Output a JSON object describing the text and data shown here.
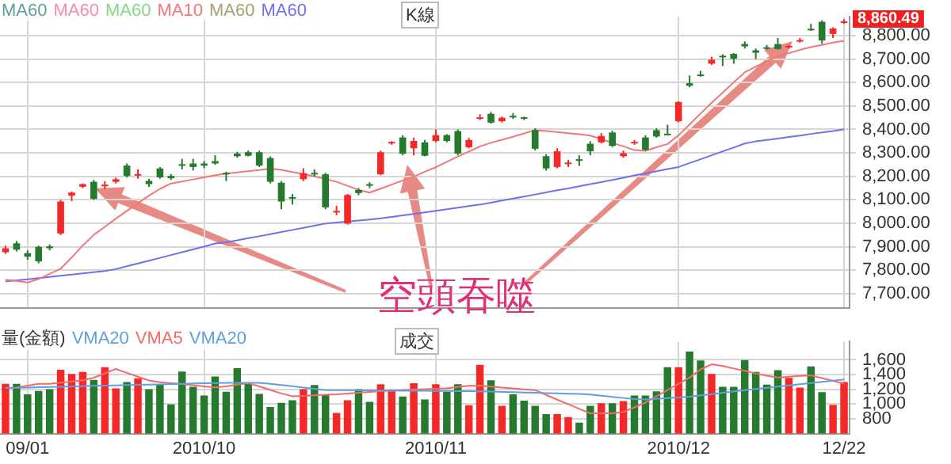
{
  "chart_data": [
    {
      "type": "candlestick",
      "categories": [
        null,
        null,
        "09/01",
        null,
        null,
        null,
        null,
        null,
        null,
        null,
        null,
        null,
        null,
        null,
        null,
        null,
        null,
        null,
        "2010/10",
        null,
        null,
        null,
        null,
        null,
        null,
        null,
        null,
        null,
        null,
        null,
        null,
        null,
        null,
        null,
        null,
        null,
        null,
        null,
        null,
        "2010/11",
        null,
        null,
        null,
        null,
        null,
        null,
        null,
        null,
        null,
        null,
        null,
        null,
        null,
        null,
        null,
        null,
        null,
        null,
        null,
        null,
        null,
        "2010/12",
        null,
        null,
        null,
        null,
        null,
        null,
        null,
        null,
        null,
        null,
        null,
        null,
        null,
        null,
        "12/22"
      ],
      "ohlc": [
        [
          7877,
          7905,
          7870,
          7894
        ],
        [
          7915,
          7925,
          7880,
          7888
        ],
        [
          7873,
          7885,
          7845,
          7858
        ],
        [
          7900,
          7905,
          7830,
          7838
        ],
        [
          7902,
          7910,
          7885,
          7894
        ],
        [
          7957,
          8100,
          7950,
          8093
        ],
        [
          8118,
          8135,
          8095,
          8131
        ],
        [
          8156,
          8170,
          8150,
          8167
        ],
        [
          8177,
          8185,
          8100,
          8104
        ],
        [
          8160,
          8180,
          8145,
          8165
        ],
        [
          8177,
          8195,
          8170,
          8188
        ],
        [
          8246,
          8255,
          8195,
          8202
        ],
        [
          8205,
          8230,
          8190,
          8210
        ],
        [
          8181,
          8190,
          8155,
          8167
        ],
        [
          8234,
          8240,
          8190,
          8196
        ],
        [
          8202,
          8210,
          8185,
          8192
        ],
        [
          8252,
          8275,
          8230,
          8248
        ],
        [
          8255,
          8275,
          8225,
          8240
        ],
        [
          8255,
          8265,
          8235,
          8246
        ],
        [
          8265,
          8290,
          8250,
          8255
        ],
        [
          8215,
          8220,
          8180,
          8209
        ],
        [
          8297,
          8305,
          8280,
          8286
        ],
        [
          8303,
          8310,
          8285,
          8288
        ],
        [
          8303,
          8310,
          8240,
          8246
        ],
        [
          8278,
          8285,
          8170,
          8177
        ],
        [
          8173,
          8180,
          8060,
          8093
        ],
        [
          8112,
          8125,
          8080,
          8108
        ],
        [
          8188,
          8235,
          8180,
          8213
        ],
        [
          8215,
          8230,
          8200,
          8211
        ],
        [
          8209,
          8215,
          8060,
          8068
        ],
        [
          8049,
          8075,
          8035,
          8053
        ],
        [
          7999,
          8125,
          7995,
          8121
        ],
        [
          8142,
          8150,
          8120,
          8129
        ],
        [
          8167,
          8175,
          8150,
          8163
        ],
        [
          8209,
          8310,
          8205,
          8303
        ],
        [
          8343,
          8350,
          8335,
          8347
        ],
        [
          8366,
          8375,
          8290,
          8297
        ],
        [
          8320,
          8365,
          8290,
          8351
        ],
        [
          8345,
          8355,
          8285,
          8288
        ],
        [
          8351,
          8400,
          8345,
          8376
        ],
        [
          8376,
          8380,
          8345,
          8351
        ],
        [
          8393,
          8400,
          8290,
          8297
        ],
        [
          8324,
          8365,
          8320,
          8355
        ],
        [
          8448,
          8465,
          8440,
          8452
        ],
        [
          8467,
          8475,
          8425,
          8429
        ],
        [
          8435,
          8455,
          8430,
          8450
        ],
        [
          8458,
          8470,
          8445,
          8454
        ],
        [
          8452,
          8455,
          8440,
          8448
        ],
        [
          8397,
          8405,
          8310,
          8318
        ],
        [
          8286,
          8295,
          8225,
          8234
        ],
        [
          8240,
          8320,
          8235,
          8307
        ],
        [
          8255,
          8270,
          8240,
          8259
        ],
        [
          8273,
          8290,
          8245,
          8269
        ],
        [
          8339,
          8350,
          8290,
          8307
        ],
        [
          8345,
          8385,
          8340,
          8372
        ],
        [
          8387,
          8395,
          8325,
          8330
        ],
        [
          8286,
          8310,
          8280,
          8299
        ],
        [
          8343,
          8355,
          8335,
          8347
        ],
        [
          8366,
          8375,
          8310,
          8313
        ],
        [
          8397,
          8405,
          8365,
          8370
        ],
        [
          8382,
          8420,
          8375,
          8378
        ],
        [
          8435,
          8520,
          8430,
          8517
        ],
        [
          8597,
          8630,
          8580,
          8586
        ],
        [
          8634,
          8650,
          8625,
          8630
        ],
        [
          8680,
          8710,
          8675,
          8697
        ],
        [
          8714,
          8720,
          8670,
          8710
        ],
        [
          8722,
          8725,
          8680,
          8701
        ],
        [
          8764,
          8775,
          8745,
          8754
        ],
        [
          8737,
          8745,
          8700,
          8727
        ],
        [
          8750,
          8760,
          8740,
          8746
        ],
        [
          8764,
          8790,
          8740,
          8743
        ],
        [
          8752,
          8760,
          8745,
          8756
        ],
        [
          8777,
          8790,
          8770,
          8781
        ],
        [
          8829,
          8850,
          8820,
          8825
        ],
        [
          8859,
          8865,
          8765,
          8779
        ],
        [
          8807,
          8835,
          8790,
          8830
        ],
        [
          8858,
          8870,
          8850,
          8860.49
        ]
      ],
      "colors": [
        "#f52828",
        "#257a2e",
        "#257a2e",
        "#257a2e",
        "#257a2e",
        "#f52828",
        "#f52828",
        "#f52828",
        "#257a2e",
        "#f52828",
        "#f52828",
        "#257a2e",
        "#f52828",
        "#257a2e",
        "#257a2e",
        "#257a2e",
        "#257a2e",
        "#257a2e",
        "#257a2e",
        "#257a2e",
        "#257a2e",
        "#257a2e",
        "#257a2e",
        "#257a2e",
        "#257a2e",
        "#257a2e",
        "#257a2e",
        "#f52828",
        "#257a2e",
        "#257a2e",
        "#f52828",
        "#f52828",
        "#257a2e",
        "#257a2e",
        "#f52828",
        "#f52828",
        "#257a2e",
        "#f52828",
        "#257a2e",
        "#f52828",
        "#257a2e",
        "#257a2e",
        "#f52828",
        "#f52828",
        "#257a2e",
        "#f52828",
        "#257a2e",
        "#257a2e",
        "#257a2e",
        "#257a2e",
        "#f52828",
        "#f52828",
        "#257a2e",
        "#257a2e",
        "#f52828",
        "#257a2e",
        "#f52828",
        "#f52828",
        "#257a2e",
        "#257a2e",
        "#257a2e",
        "#f52828",
        "#257a2e",
        "#257a2e",
        "#f52828",
        "#257a2e",
        "#257a2e",
        "#257a2e",
        "#257a2e",
        "#257a2e",
        "#257a2e",
        "#f52828",
        "#f52828",
        "#257a2e",
        "#257a2e",
        "#f52828",
        "#f52828"
      ],
      "series": [
        {
          "name": "MA60",
          "color": "#5f9ea0",
          "type": "line",
          "values": [
            null,
            null,
            null,
            null,
            null,
            null,
            null,
            null,
            null,
            null,
            null,
            null,
            null,
            null,
            null,
            null,
            null,
            null,
            null,
            null,
            null,
            null,
            null,
            null,
            null,
            null,
            null,
            null,
            null,
            null,
            null,
            null,
            null,
            null,
            null,
            null,
            null,
            null,
            null,
            null,
            null,
            null,
            null,
            null,
            null,
            null,
            null,
            null,
            null,
            null,
            null,
            null,
            null,
            null,
            null,
            null,
            null,
            null,
            null,
            null,
            null,
            null,
            null,
            null,
            null,
            null,
            null,
            null,
            null,
            null,
            null,
            null,
            null,
            null,
            null,
            null,
            null
          ]
        },
        {
          "name": "MA60",
          "color": "#f28cb0",
          "type": "line",
          "values": [
            null,
            null,
            null,
            null,
            null,
            null,
            null,
            null,
            null,
            null,
            null,
            null,
            null,
            null,
            null,
            null,
            null,
            null,
            null,
            null,
            null,
            null,
            null,
            null,
            null,
            null,
            null,
            null,
            null,
            null,
            null,
            null,
            null,
            null,
            null,
            null,
            null,
            null,
            null,
            null,
            null,
            null,
            null,
            null,
            null,
            null,
            null,
            null,
            null,
            null,
            null,
            null,
            null,
            null,
            null,
            null,
            null,
            null,
            null,
            null,
            null,
            null,
            null,
            null,
            null,
            null,
            null,
            null,
            null,
            null,
            null,
            null,
            null,
            null,
            null,
            null,
            null
          ]
        },
        {
          "name": "MA60",
          "color": "#86d886",
          "type": "line",
          "values": [
            null,
            null,
            null,
            null,
            null,
            null,
            null,
            null,
            null,
            null,
            null,
            null,
            null,
            null,
            null,
            null,
            null,
            null,
            null,
            null,
            null,
            null,
            null,
            null,
            null,
            null,
            null,
            null,
            null,
            null,
            null,
            null,
            null,
            null,
            null,
            null,
            null,
            null,
            null,
            null,
            null,
            null,
            null,
            null,
            null,
            null,
            null,
            null,
            null,
            null,
            null,
            null,
            null,
            null,
            null,
            null,
            null,
            null,
            null,
            null,
            null,
            null,
            null,
            null,
            null,
            null,
            null,
            null,
            null,
            null,
            null,
            null,
            null,
            null,
            null,
            null,
            null
          ]
        },
        {
          "name": "MA10",
          "color": "#f27777",
          "type": "line",
          "values": [
            7760,
            7755,
            7748,
            7763,
            7785,
            7807,
            7855,
            7906,
            7951,
            7985,
            8020,
            8053,
            8086,
            8118,
            8147,
            8170,
            8178,
            8187,
            8196,
            8205,
            8212,
            8217,
            8222,
            8227,
            8233,
            8228,
            8219,
            8210,
            8200,
            8189,
            8177,
            8160,
            8143,
            8131,
            8148,
            8165,
            8183,
            8199,
            8220,
            8239,
            8262,
            8285,
            8306,
            8328,
            8343,
            8356,
            8369,
            8383,
            8397,
            8393,
            8389,
            8384,
            8380,
            8374,
            8359,
            8343,
            8328,
            8312,
            8309,
            8324,
            8338,
            8375,
            8421,
            8468,
            8514,
            8557,
            8601,
            8643,
            8668,
            8690,
            8712,
            8725,
            8739,
            8751,
            8760,
            8770,
            8778
          ]
        },
        {
          "name": "MA60",
          "color": "#a8a070",
          "type": "line",
          "values": [
            null,
            null,
            null,
            null,
            null,
            null,
            null,
            null,
            null,
            null,
            null,
            null,
            null,
            null,
            null,
            null,
            null,
            null,
            null,
            null,
            null,
            null,
            null,
            null,
            null,
            null,
            null,
            null,
            null,
            null,
            null,
            null,
            null,
            null,
            null,
            null,
            null,
            null,
            null,
            null,
            null,
            null,
            null,
            null,
            null,
            null,
            null,
            null,
            null,
            null,
            null,
            null,
            null,
            null,
            null,
            null,
            null,
            null,
            null,
            null,
            null,
            null,
            null,
            null,
            null,
            null,
            null,
            null,
            null,
            null,
            null,
            null,
            null,
            null,
            null,
            null,
            null
          ]
        },
        {
          "name": "MA60",
          "color": "#6f6ff0",
          "type": "line",
          "values": [
            7752,
            7757,
            7762,
            7767,
            7772,
            7777,
            7782,
            7787,
            7792,
            7797,
            7805,
            7817,
            7829,
            7841,
            7853,
            7865,
            7877,
            7889,
            7901,
            7914,
            7919,
            7928,
            7937,
            7945,
            7954,
            7963,
            7972,
            7981,
            7990,
            7999,
            8004,
            8008,
            8012,
            8016,
            8021,
            8027,
            8034,
            8040,
            8047,
            8053,
            8060,
            8067,
            8074,
            8080,
            8088,
            8097,
            8106,
            8114,
            8123,
            8132,
            8141,
            8149,
            8158,
            8167,
            8176,
            8185,
            8194,
            8204,
            8213,
            8222,
            8231,
            8240,
            8257,
            8273,
            8290,
            8307,
            8323,
            8340,
            8349,
            8355,
            8361,
            8368,
            8374,
            8381,
            8387,
            8393,
            8401
          ]
        }
      ],
      "ylim": [
        7640,
        8880
      ],
      "yticks": [
        {
          "value": 7700,
          "label": "7,700.00"
        },
        {
          "value": 7800,
          "label": "7,800.00"
        },
        {
          "value": 7900,
          "label": "7,900.00"
        },
        {
          "value": 8000,
          "label": "8,000.00"
        },
        {
          "value": 8100,
          "label": "8,100.00"
        },
        {
          "value": 8200,
          "label": "8,200.00"
        },
        {
          "value": 8300,
          "label": "8,300.00"
        },
        {
          "value": 8400,
          "label": "8,400.00"
        },
        {
          "value": 8500,
          "label": "8,500.00"
        },
        {
          "value": 8600,
          "label": "8,600.00"
        },
        {
          "value": 8700,
          "label": "8,700.00"
        },
        {
          "value": 8800,
          "label": "8,800.00"
        }
      ],
      "grid": true,
      "legend": "top left",
      "tick_labels": "y",
      "annotations": [
        "K線",
        "空頭吞噬",
        {
          "text": "8,860.49",
          "x": "12/22",
          "y": 8860.49
        }
      ]
    },
    {
      "type": "bar",
      "legend_title": "量(金額)",
      "categories": [
        null,
        null,
        "09/01",
        null,
        null,
        null,
        null,
        null,
        null,
        null,
        null,
        null,
        null,
        null,
        null,
        null,
        null,
        null,
        "2010/10",
        null,
        null,
        null,
        null,
        null,
        null,
        null,
        null,
        null,
        null,
        null,
        null,
        null,
        null,
        null,
        null,
        null,
        null,
        null,
        null,
        "2010/11",
        null,
        null,
        null,
        null,
        null,
        null,
        null,
        null,
        null,
        null,
        null,
        null,
        null,
        null,
        null,
        null,
        null,
        null,
        null,
        null,
        null,
        "2010/12",
        null,
        null,
        null,
        null,
        null,
        null,
        null,
        null,
        null,
        null,
        null,
        null,
        null,
        null,
        "12/22"
      ],
      "values": [
        1276,
        1276,
        1133,
        1179,
        1202,
        1465,
        1408,
        1437,
        1328,
        1500,
        1213,
        1299,
        1351,
        1202,
        1265,
        995,
        1442,
        1236,
        1116,
        1374,
        1167,
        1488,
        1293,
        1139,
        961,
        1018,
        1053,
        1202,
        1259,
        1133,
        881,
        1053,
        1202,
        1030,
        1270,
        1196,
        1104,
        1282,
        1064,
        1270,
        1167,
        1270,
        984,
        1534,
        1322,
        978,
        1133,
        1047,
        978,
        864,
        864,
        823,
        749,
        978,
        1012,
        1012,
        1041,
        1116,
        1116,
        1173,
        1500,
        1500,
        1712,
        1591,
        1408,
        1236,
        1236,
        1597,
        1437,
        1265,
        1459,
        1356,
        1225,
        1511,
        1162,
        990,
        1299
      ],
      "colors": [
        "#f52828",
        "#257a2e",
        "#257a2e",
        "#257a2e",
        "#257a2e",
        "#f52828",
        "#f52828",
        "#f52828",
        "#257a2e",
        "#f52828",
        "#f52828",
        "#257a2e",
        "#f52828",
        "#257a2e",
        "#257a2e",
        "#257a2e",
        "#257a2e",
        "#257a2e",
        "#257a2e",
        "#257a2e",
        "#257a2e",
        "#257a2e",
        "#257a2e",
        "#257a2e",
        "#257a2e",
        "#257a2e",
        "#257a2e",
        "#f52828",
        "#257a2e",
        "#257a2e",
        "#f52828",
        "#f52828",
        "#257a2e",
        "#257a2e",
        "#f52828",
        "#f52828",
        "#257a2e",
        "#f52828",
        "#257a2e",
        "#f52828",
        "#257a2e",
        "#257a2e",
        "#f52828",
        "#f52828",
        "#257a2e",
        "#f52828",
        "#257a2e",
        "#257a2e",
        "#257a2e",
        "#257a2e",
        "#f52828",
        "#f52828",
        "#257a2e",
        "#257a2e",
        "#f52828",
        "#257a2e",
        "#f52828",
        "#257a2e",
        "#257a2e",
        "#257a2e",
        "#257a2e",
        "#f52828",
        "#257a2e",
        "#257a2e",
        "#f52828",
        "#257a2e",
        "#257a2e",
        "#257a2e",
        "#257a2e",
        "#257a2e",
        "#257a2e",
        "#f52828",
        "#f52828",
        "#257a2e",
        "#257a2e",
        "#f52828",
        "#f52828"
      ],
      "series": [
        {
          "name": "VMA20",
          "color": "#5f9fe0",
          "type": "line",
          "values": [
            1219,
            1221,
            1225,
            1228,
            1232,
            1236,
            1239,
            1243,
            1247,
            1250,
            1254,
            1258,
            1261,
            1265,
            1268,
            1272,
            1276,
            1279,
            1283,
            1287,
            1288,
            1288,
            1288,
            1288,
            1276,
            1259,
            1242,
            1224,
            1207,
            1190,
            1189,
            1188,
            1187,
            1186,
            1185,
            1183,
            1182,
            1181,
            1180,
            1178,
            1177,
            1176,
            1175,
            1173,
            1171,
            1166,
            1162,
            1158,
            1154,
            1150,
            1145,
            1141,
            1137,
            1131,
            1115,
            1099,
            1083,
            1067,
            1062,
            1072,
            1082,
            1091,
            1101,
            1118,
            1136,
            1154,
            1172,
            1190,
            1206,
            1222,
            1238,
            1254,
            1270,
            1286,
            1302,
            1318,
            1333
          ]
        },
        {
          "name": "VMA5",
          "color": "#f26a6a",
          "type": "line",
          "values": [
            1219,
            1224,
            1250,
            1276,
            1276,
            1292,
            1308,
            1324,
            1358,
            1417,
            1477,
            1424,
            1372,
            1320,
            1296,
            1284,
            1272,
            1256,
            1241,
            1226,
            1239,
            1264,
            1284,
            1240,
            1192,
            1145,
            1107,
            1112,
            1120,
            1128,
            1133,
            1144,
            1155,
            1166,
            1175,
            1182,
            1189,
            1196,
            1203,
            1208,
            1215,
            1231,
            1247,
            1251,
            1238,
            1225,
            1212,
            1199,
            1190,
            1125,
            1060,
            1000,
            935,
            875,
            875,
            875,
            893,
            955,
            1020,
            1106,
            1191,
            1276,
            1360,
            1471,
            1540,
            1517,
            1483,
            1452,
            1413,
            1384,
            1362,
            1372,
            1382,
            1389,
            1352,
            1315,
            1276
          ]
        },
        {
          "name": "VMA20",
          "color": "#5f9fe0",
          "type": "line",
          "values": [
            null,
            null,
            null,
            null,
            null,
            null,
            null,
            null,
            null,
            null,
            null,
            null,
            null,
            null,
            null,
            null,
            null,
            null,
            null,
            null,
            null,
            null,
            null,
            null,
            null,
            null,
            null,
            null,
            null,
            null,
            null,
            null,
            null,
            null,
            null,
            null,
            null,
            null,
            null,
            null,
            null,
            null,
            null,
            null,
            null,
            null,
            null,
            null,
            null,
            null,
            null,
            null,
            null,
            null,
            null,
            null,
            null,
            null,
            null,
            null,
            null,
            null,
            null,
            null,
            null,
            null,
            null,
            null,
            null,
            null,
            null,
            null,
            null,
            null,
            null,
            null,
            null
          ]
        }
      ],
      "ylim": [
        600,
        1850
      ],
      "yticks": [
        800,
        {
          "value": 1000,
          "label": "1,000"
        },
        {
          "value": 1200,
          "label": "1,200"
        },
        {
          "value": 1400,
          "label": "1,400"
        },
        {
          "value": 1600,
          "label": "1,600"
        }
      ],
      "grid": true,
      "legend": "top left",
      "annotations": [
        "成交"
      ]
    }
  ]
}
